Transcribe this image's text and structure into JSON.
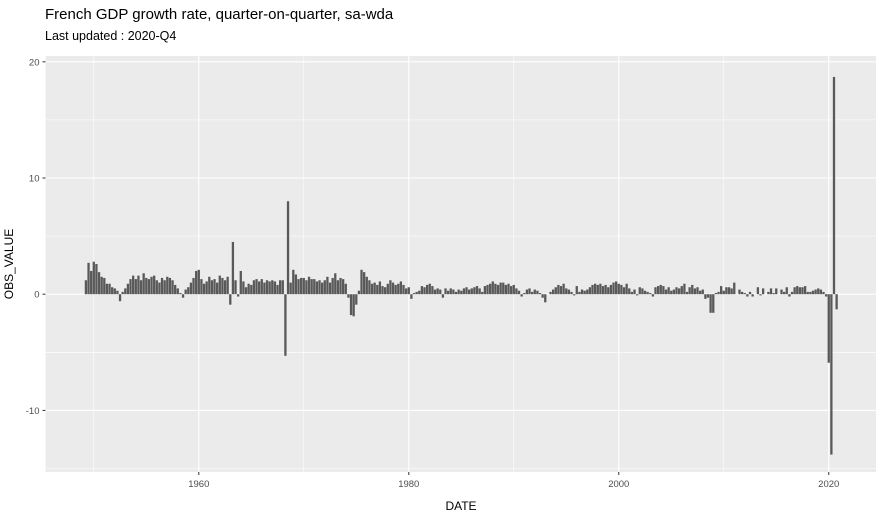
{
  "header": {
    "title": "French GDP growth rate, quarter-on-quarter, sa-wda",
    "subtitle": "Last updated : 2020-Q4"
  },
  "chart_data": {
    "type": "bar",
    "title": "French GDP growth rate, quarter-on-quarter, sa-wda",
    "subtitle": "Last updated : 2020-Q4",
    "xlabel": "DATE",
    "ylabel": "OBS_VALUE",
    "x_tick_labels": [
      "1960",
      "1980",
      "2000",
      "2020"
    ],
    "x_ticks": [
      1960,
      1980,
      2000,
      2020
    ],
    "x_minor_gridlines": [
      1950,
      1970,
      1990,
      2010
    ],
    "y_tick_labels": [
      "-10",
      "0",
      "10",
      "20"
    ],
    "y_ticks": [
      -10,
      0,
      10,
      20
    ],
    "y_minor_gridlines": [
      -15,
      -5,
      5,
      15
    ],
    "x_range": [
      1945.4,
      2024.5
    ],
    "y_range": [
      -15.3,
      20.5
    ],
    "grid": true,
    "legend": "none",
    "colors": {
      "bar": "#595959",
      "panel_background": "#ebebeb",
      "gridline": "#ffffff",
      "tick_mark": "#333333",
      "axis_text": "#4d4d4d",
      "title_text": "#000000"
    },
    "series_start": "1949-Q2",
    "series_end": "2020-Q4",
    "quarters_per_year": 4,
    "values": [
      1.2,
      2.7,
      2.0,
      2.8,
      2.6,
      1.9,
      1.5,
      1.4,
      0.9,
      0.9,
      0.6,
      0.5,
      0.3,
      -0.6,
      0.2,
      0.5,
      0.9,
      1.3,
      1.6,
      1.3,
      1.6,
      1.2,
      1.8,
      1.4,
      1.3,
      1.5,
      1.6,
      1.2,
      1.0,
      1.4,
      1.2,
      1.5,
      1.4,
      1.2,
      0.8,
      0.5,
      0.1,
      -0.3,
      0.4,
      0.6,
      1.0,
      1.4,
      2.0,
      2.1,
      1.3,
      0.9,
      1.1,
      1.5,
      1.2,
      1.3,
      1.0,
      1.6,
      1.4,
      1.2,
      1.5,
      -0.9,
      4.5,
      1.2,
      -0.2,
      2.0,
      1.1,
      0.6,
      0.9,
      0.8,
      1.2,
      1.3,
      1.1,
      1.3,
      1.0,
      1.2,
      1.1,
      1.2,
      1.1,
      0.8,
      1.2,
      1.2,
      -5.3,
      8.0,
      1.0,
      2.1,
      1.7,
      1.3,
      1.4,
      1.4,
      1.2,
      1.5,
      1.3,
      1.3,
      1.1,
      1.2,
      1.0,
      1.2,
      1.5,
      1.0,
      1.4,
      1.8,
      1.2,
      1.4,
      1.3,
      0.9,
      -0.3,
      -1.8,
      -1.9,
      -0.9,
      0.3,
      2.1,
      1.9,
      1.5,
      1.2,
      0.9,
      1.0,
      0.8,
      1.1,
      0.7,
      0.6,
      0.9,
      1.2,
      1.0,
      0.8,
      0.9,
      1.1,
      0.8,
      0.5,
      0.6,
      -0.4,
      0.1,
      0.2,
      0.3,
      0.7,
      0.6,
      0.8,
      0.9,
      0.7,
      0.4,
      0.5,
      0.4,
      -0.3,
      0.5,
      0.3,
      0.5,
      0.4,
      0.2,
      0.4,
      0.3,
      0.5,
      0.6,
      0.4,
      0.5,
      0.6,
      0.7,
      0.5,
      0.2,
      0.7,
      0.8,
      0.9,
      1.1,
      0.9,
      0.8,
      1.0,
      1.0,
      0.8,
      0.9,
      0.7,
      0.8,
      0.5,
      0.3,
      -0.2,
      0.1,
      0.4,
      0.5,
      0.2,
      0.4,
      0.3,
      0.1,
      -0.3,
      -0.7,
      0.0,
      0.2,
      0.4,
      0.6,
      0.8,
      0.7,
      0.9,
      0.5,
      0.4,
      0.2,
      -0.1,
      0.7,
      0.2,
      0.4,
      0.3,
      0.4,
      0.6,
      0.8,
      0.9,
      0.8,
      0.9,
      0.7,
      0.8,
      0.6,
      0.8,
      1.0,
      1.1,
      0.9,
      0.8,
      0.6,
      0.9,
      0.5,
      0.2,
      0.4,
      -0.1,
      0.6,
      0.5,
      0.3,
      0.2,
      0.1,
      -0.2,
      0.6,
      0.7,
      0.8,
      0.7,
      0.4,
      0.6,
      0.3,
      0.4,
      0.6,
      0.5,
      0.7,
      0.9,
      0.2,
      0.6,
      0.8,
      0.5,
      0.6,
      0.3,
      0.4,
      -0.4,
      -0.3,
      -1.6,
      -1.6,
      0.1,
      0.2,
      0.7,
      0.3,
      0.6,
      0.6,
      0.5,
      1.0,
      0.0,
      0.4,
      0.2,
      0.1,
      -0.2,
      0.2,
      -0.2,
      0.0,
      0.6,
      -0.1,
      0.5,
      0.0,
      0.2,
      0.5,
      0.1,
      0.5,
      0.0,
      0.4,
      0.2,
      0.6,
      -0.2,
      0.2,
      0.6,
      0.7,
      0.6,
      0.6,
      0.7,
      0.2,
      0.2,
      0.3,
      0.4,
      0.5,
      0.4,
      0.2,
      -0.2,
      -5.9,
      -13.8,
      18.7,
      -1.3
    ]
  }
}
